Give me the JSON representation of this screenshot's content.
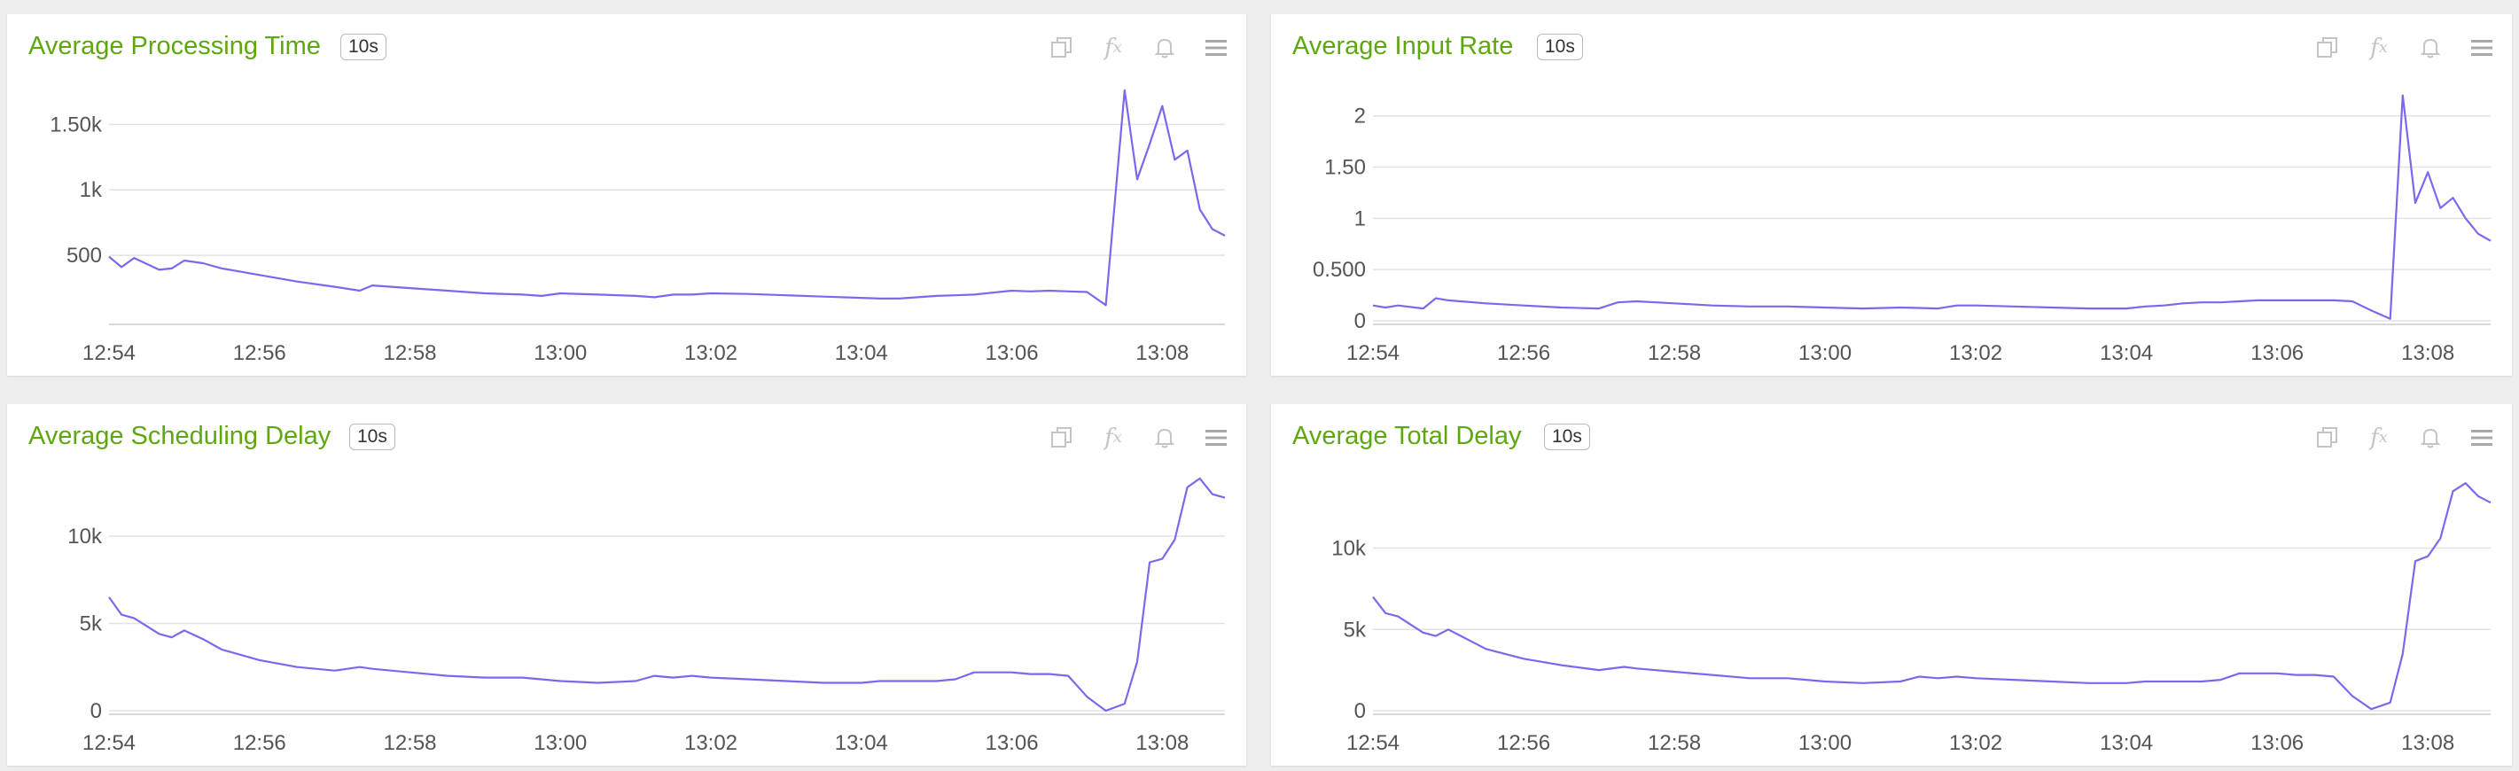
{
  "panels": [
    {
      "title": "Average Processing Time",
      "badge": "10s",
      "icons": [
        "copy-icon",
        "formula-fx-icon",
        "bell-icon",
        "menu-icon"
      ],
      "chart_data": {
        "type": "line",
        "title": "Average Processing Time",
        "xlabel": "",
        "ylabel": "",
        "x_ticks": [
          "12:54",
          "12:56",
          "12:58",
          "13:00",
          "13:02",
          "13:04",
          "13:06",
          "13:08"
        ],
        "y_ticks": [
          "500",
          "1k",
          "1.50k"
        ],
        "y_tick_values": [
          500,
          1000,
          1500
        ],
        "ylim": [
          0,
          1800
        ],
        "grid": true,
        "color": "#7b68ee",
        "series": [
          {
            "x": [
              "12:54:00",
              "12:54:10",
              "12:54:20",
              "12:54:40",
              "12:54:50",
              "12:55:00",
              "12:55:15",
              "12:55:30",
              "12:56:00",
              "12:56:30",
              "12:57:00",
              "12:57:20",
              "12:57:30",
              "12:58:00",
              "12:58:30",
              "12:59:00",
              "12:59:30",
              "12:59:45",
              "13:00:00",
              "13:00:30",
              "13:01:00",
              "13:01:15",
              "13:01:30",
              "13:01:45",
              "13:02:00",
              "13:02:30",
              "13:03:00",
              "13:03:30",
              "13:04:00",
              "13:04:15",
              "13:04:30",
              "13:04:45",
              "13:05:00",
              "13:05:15",
              "13:05:30",
              "13:05:45",
              "13:06:00",
              "13:06:15",
              "13:06:30",
              "13:06:45",
              "13:07:00",
              "13:07:15",
              "13:07:30",
              "13:07:40",
              "13:07:50",
              "13:08:00",
              "13:08:10",
              "13:08:20",
              "13:08:30",
              "13:08:40",
              "13:08:50"
            ],
            "values": [
              490,
              410,
              480,
              390,
              400,
              460,
              440,
              400,
              350,
              300,
              260,
              230,
              270,
              250,
              230,
              210,
              200,
              190,
              210,
              200,
              190,
              180,
              200,
              200,
              210,
              205,
              195,
              185,
              175,
              170,
              170,
              180,
              190,
              195,
              200,
              215,
              230,
              225,
              230,
              225,
              220,
              120,
              1760,
              1080,
              1350,
              1640,
              1230,
              1300,
              850,
              700,
              650
            ]
          }
        ]
      }
    },
    {
      "title": "Average Input Rate",
      "badge": "10s",
      "icons": [
        "copy-icon",
        "formula-fx-icon",
        "bell-icon",
        "menu-icon"
      ],
      "chart_data": {
        "type": "line",
        "title": "Average Input Rate",
        "xlabel": "",
        "ylabel": "",
        "x_ticks": [
          "12:54",
          "12:56",
          "12:58",
          "13:00",
          "13:02",
          "13:04",
          "13:06",
          "13:08"
        ],
        "y_ticks": [
          "0",
          "0.500",
          "1",
          "1.50",
          "2"
        ],
        "y_tick_values": [
          0,
          0.5,
          1,
          1.5,
          2
        ],
        "ylim": [
          0,
          2.3
        ],
        "grid": true,
        "color": "#7b68ee",
        "series": [
          {
            "x": [
              "12:54:00",
              "12:54:10",
              "12:54:20",
              "12:54:40",
              "12:54:50",
              "12:55:00",
              "12:55:30",
              "12:56:00",
              "12:56:30",
              "12:57:00",
              "12:57:15",
              "12:57:30",
              "12:58:00",
              "12:58:30",
              "12:59:00",
              "12:59:30",
              "13:00:00",
              "13:00:30",
              "13:01:00",
              "13:01:30",
              "13:01:45",
              "13:02:00",
              "13:02:30",
              "13:03:00",
              "13:03:30",
              "13:04:00",
              "13:04:15",
              "13:04:30",
              "13:04:45",
              "13:05:00",
              "13:05:15",
              "13:05:30",
              "13:05:45",
              "13:06:00",
              "13:06:15",
              "13:06:30",
              "13:06:45",
              "13:07:00",
              "13:07:15",
              "13:07:30",
              "13:07:40",
              "13:07:50",
              "13:08:00",
              "13:08:10",
              "13:08:20",
              "13:08:30",
              "13:08:40",
              "13:08:50"
            ],
            "values": [
              0.15,
              0.13,
              0.15,
              0.12,
              0.22,
              0.2,
              0.17,
              0.15,
              0.13,
              0.12,
              0.18,
              0.19,
              0.17,
              0.15,
              0.14,
              0.14,
              0.13,
              0.12,
              0.13,
              0.12,
              0.15,
              0.15,
              0.14,
              0.13,
              0.12,
              0.12,
              0.14,
              0.15,
              0.17,
              0.18,
              0.18,
              0.19,
              0.2,
              0.2,
              0.2,
              0.2,
              0.2,
              0.19,
              0.1,
              0.02,
              2.2,
              1.15,
              1.45,
              1.1,
              1.2,
              1.0,
              0.85,
              0.78
            ]
          }
        ]
      }
    },
    {
      "title": "Average Scheduling Delay",
      "badge": "10s",
      "icons": [
        "copy-icon",
        "formula-fx-icon",
        "bell-icon",
        "menu-icon"
      ],
      "chart_data": {
        "type": "line",
        "title": "Average Scheduling Delay",
        "xlabel": "",
        "ylabel": "",
        "x_ticks": [
          "12:54",
          "12:56",
          "12:58",
          "13:00",
          "13:02",
          "13:04",
          "13:06",
          "13:08"
        ],
        "y_ticks": [
          "0",
          "5k",
          "10k"
        ],
        "y_tick_values": [
          0,
          5000,
          10000
        ],
        "ylim": [
          0,
          13500
        ],
        "grid": true,
        "color": "#7b68ee",
        "series": [
          {
            "x": [
              "12:54:00",
              "12:54:10",
              "12:54:20",
              "12:54:40",
              "12:54:50",
              "12:55:00",
              "12:55:15",
              "12:55:30",
              "12:56:00",
              "12:56:30",
              "12:57:00",
              "12:57:20",
              "12:57:30",
              "12:58:00",
              "12:58:30",
              "12:59:00",
              "12:59:30",
              "13:00:00",
              "13:00:30",
              "13:01:00",
              "13:01:15",
              "13:01:30",
              "13:01:45",
              "13:02:00",
              "13:02:30",
              "13:03:00",
              "13:03:30",
              "13:04:00",
              "13:04:15",
              "13:04:30",
              "13:04:45",
              "13:05:00",
              "13:05:15",
              "13:05:30",
              "13:05:45",
              "13:06:00",
              "13:06:15",
              "13:06:30",
              "13:06:45",
              "13:07:00",
              "13:07:15",
              "13:07:30",
              "13:07:40",
              "13:07:50",
              "13:08:00",
              "13:08:10",
              "13:08:20",
              "13:08:30",
              "13:08:40",
              "13:08:50"
            ],
            "values": [
              6500,
              5500,
              5300,
              4400,
              4200,
              4600,
              4100,
              3500,
              2900,
              2500,
              2300,
              2500,
              2400,
              2200,
              2000,
              1900,
              1900,
              1700,
              1600,
              1700,
              2000,
              1900,
              2000,
              1900,
              1800,
              1700,
              1600,
              1600,
              1700,
              1700,
              1700,
              1700,
              1800,
              2200,
              2200,
              2200,
              2100,
              2100,
              2000,
              800,
              0,
              400,
              2800,
              8500,
              8700,
              9800,
              12800,
              13300,
              12400,
              12200
            ]
          }
        ]
      }
    },
    {
      "title": "Average Total Delay",
      "badge": "10s",
      "icons": [
        "copy-icon",
        "formula-fx-icon",
        "bell-icon",
        "menu-icon"
      ],
      "chart_data": {
        "type": "line",
        "title": "Average Total Delay",
        "xlabel": "",
        "ylabel": "",
        "x_ticks": [
          "12:54",
          "12:56",
          "12:58",
          "13:00",
          "13:02",
          "13:04",
          "13:06",
          "13:08"
        ],
        "y_ticks": [
          "0",
          "5k",
          "10k"
        ],
        "y_tick_values": [
          0,
          5000,
          10000
        ],
        "ylim": [
          0,
          14500
        ],
        "grid": true,
        "color": "#7b68ee",
        "series": [
          {
            "x": [
              "12:54:00",
              "12:54:10",
              "12:54:20",
              "12:54:40",
              "12:54:50",
              "12:55:00",
              "12:55:15",
              "12:55:30",
              "12:56:00",
              "12:56:30",
              "12:57:00",
              "12:57:20",
              "12:57:30",
              "12:58:00",
              "12:58:30",
              "12:59:00",
              "12:59:30",
              "13:00:00",
              "13:00:30",
              "13:01:00",
              "13:01:15",
              "13:01:30",
              "13:01:45",
              "13:02:00",
              "13:02:30",
              "13:03:00",
              "13:03:30",
              "13:04:00",
              "13:04:15",
              "13:04:30",
              "13:04:45",
              "13:05:00",
              "13:05:15",
              "13:05:30",
              "13:05:45",
              "13:06:00",
              "13:06:15",
              "13:06:30",
              "13:06:45",
              "13:07:00",
              "13:07:15",
              "13:07:30",
              "13:07:40",
              "13:07:50",
              "13:08:00",
              "13:08:10",
              "13:08:20",
              "13:08:30",
              "13:08:40",
              "13:08:50"
            ],
            "values": [
              7000,
              6000,
              5800,
              4800,
              4600,
              5000,
              4400,
              3800,
              3200,
              2800,
              2500,
              2700,
              2600,
              2400,
              2200,
              2000,
              2000,
              1800,
              1700,
              1800,
              2100,
              2000,
              2100,
              2000,
              1900,
              1800,
              1700,
              1700,
              1800,
              1800,
              1800,
              1800,
              1900,
              2300,
              2300,
              2300,
              2200,
              2200,
              2100,
              900,
              100,
              500,
              3500,
              9200,
              9500,
              10600,
              13500,
              14000,
              13200,
              12800
            ]
          }
        ]
      }
    }
  ]
}
